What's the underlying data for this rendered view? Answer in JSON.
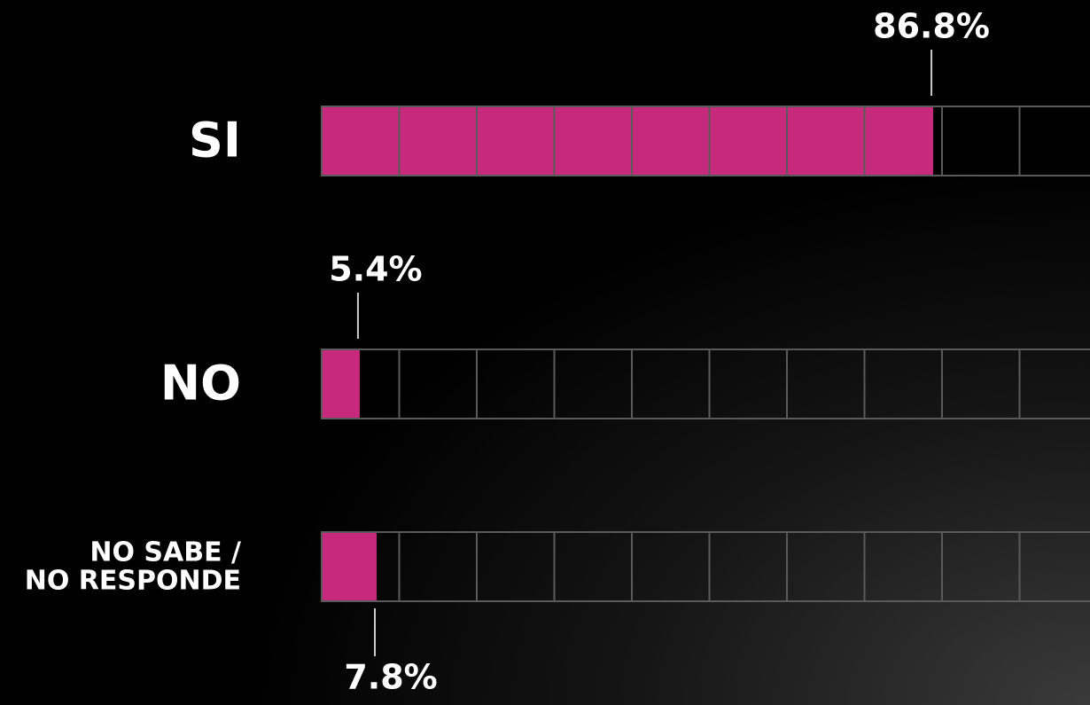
{
  "chart_data": {
    "type": "bar",
    "orientation": "horizontal",
    "categories": [
      "SI",
      "NO",
      "NO SABE /\nNO RESPONDE"
    ],
    "values": [
      86.8,
      5.4,
      7.8
    ],
    "value_labels": [
      "86.8%",
      "5.4%",
      "7.8%"
    ],
    "color": "#c72a7c",
    "xlim": [
      0,
      100
    ]
  }
}
